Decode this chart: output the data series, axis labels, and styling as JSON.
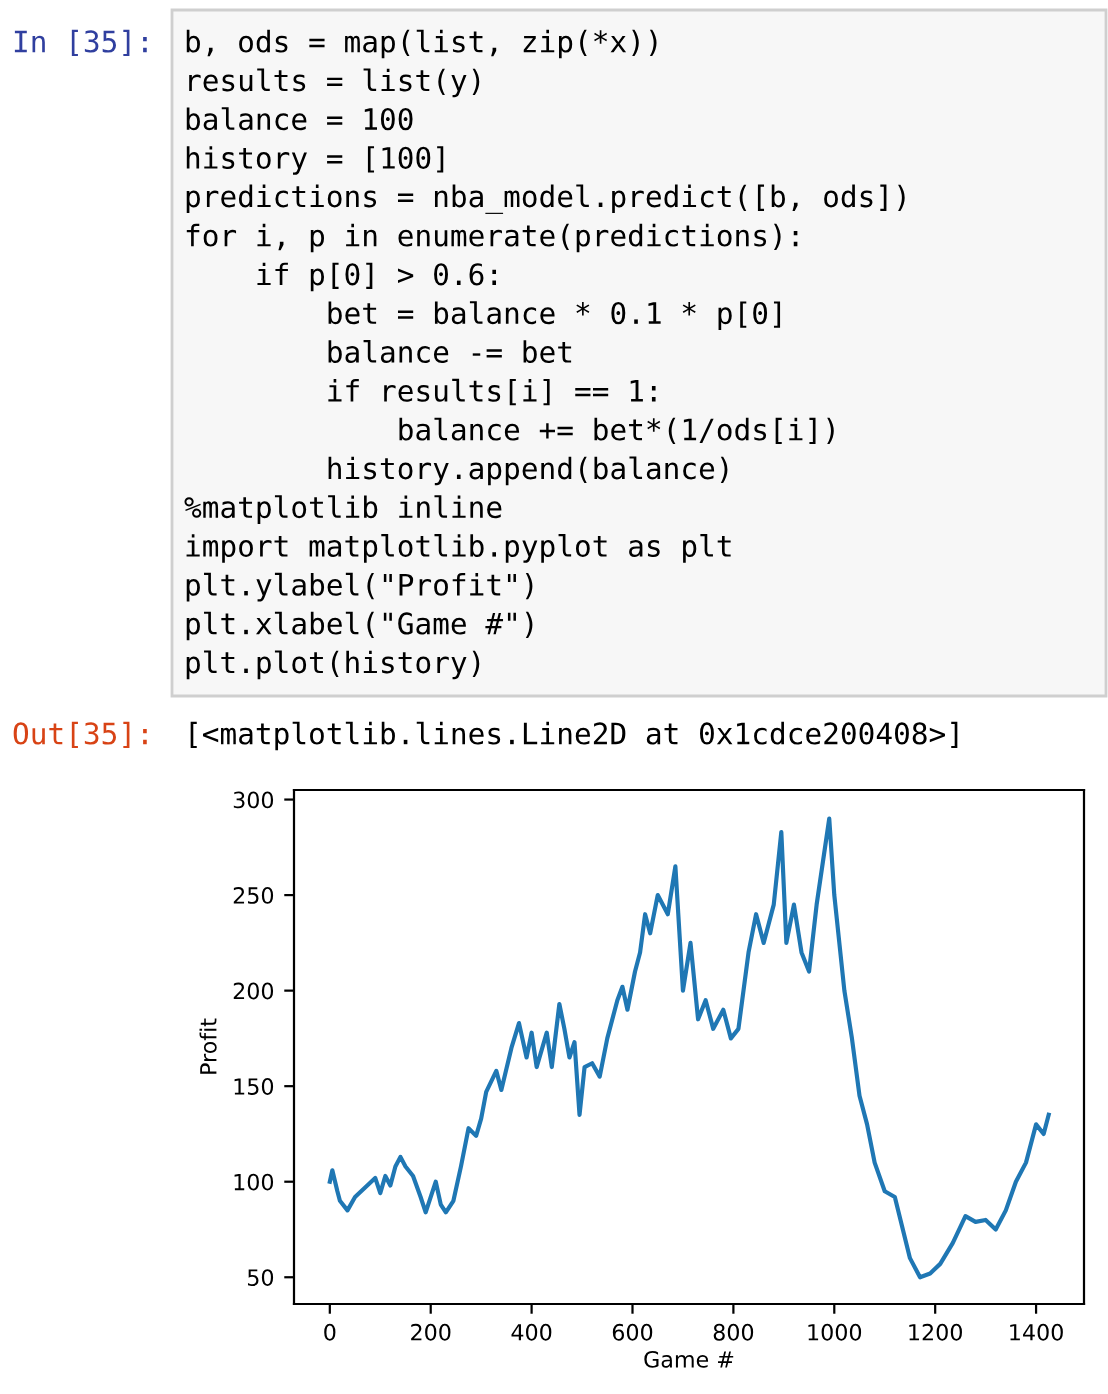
{
  "chart_data": {
    "type": "line",
    "xlabel": "Game #",
    "ylabel": "Profit",
    "annotations": [
      "In [35]:",
      "b, ods = map(list, zip(*x))",
      "results = list(y)",
      "balance = 100",
      "history = [100]",
      "predictions = nba_model.predict([b, ods])",
      "for i, p in enumerate(predictions):",
      "    if p[0] > 0.6:",
      "        bet = balance * 0.1 * p[0]",
      "        balance -= bet",
      "        if results[i] == 1:",
      "            balance += bet*(1/ods[i])",
      "        history.append(balance)",
      "%matplotlib inline",
      "import matplotlib.pyplot as plt",
      "plt.ylabel(\"Profit\")",
      "plt.xlabel(\"Game #\")",
      "plt.plot(history)",
      "Out[35]:",
      "[<matplotlib.lines.Line2D at 0x1cdce200408>]"
    ],
    "series": [
      {
        "color": "#1f77b4",
        "x": [
          0,
          5,
          15,
          20,
          35,
          50,
          70,
          90,
          100,
          110,
          120,
          130,
          140,
          150,
          165,
          180,
          190,
          210,
          220,
          230,
          245,
          260,
          275,
          290,
          300,
          310,
          330,
          340,
          360,
          375,
          390,
          400,
          410,
          430,
          440,
          455,
          465,
          475,
          485,
          495,
          505,
          520,
          535,
          550,
          570,
          580,
          590,
          605,
          615,
          625,
          635,
          650,
          670,
          685,
          700,
          715,
          730,
          745,
          760,
          780,
          795,
          810,
          830,
          845,
          860,
          880,
          895,
          905,
          920,
          935,
          950,
          965,
          990,
          1000,
          1020,
          1035,
          1050,
          1065,
          1080,
          1100,
          1120,
          1150,
          1170,
          1190,
          1210,
          1235,
          1260,
          1280,
          1300,
          1320,
          1340,
          1360,
          1380,
          1400,
          1415,
          1425
        ],
        "values": [
          100,
          106,
          95,
          90,
          85,
          92,
          97,
          102,
          94,
          103,
          98,
          108,
          113,
          108,
          103,
          92,
          84,
          100,
          88,
          84,
          90,
          108,
          128,
          124,
          133,
          147,
          158,
          148,
          170,
          183,
          165,
          178,
          160,
          178,
          160,
          193,
          180,
          165,
          173,
          135,
          160,
          162,
          155,
          175,
          195,
          202,
          190,
          210,
          220,
          240,
          230,
          250,
          240,
          265,
          200,
          225,
          185,
          195,
          180,
          190,
          175,
          180,
          220,
          240,
          225,
          245,
          283,
          225,
          245,
          220,
          210,
          245,
          290,
          250,
          200,
          175,
          145,
          130,
          110,
          95,
          92,
          60,
          50,
          52,
          57,
          68,
          82,
          79,
          80,
          75,
          85,
          100,
          110,
          130,
          125,
          135
        ]
      }
    ],
    "xlim": [
      -71,
      1495
    ],
    "ylim": [
      36,
      305
    ],
    "xticks": [
      0,
      200,
      400,
      600,
      800,
      1000,
      1200,
      1400
    ],
    "yticks": [
      50,
      100,
      150,
      200,
      250,
      300
    ],
    "grid": false,
    "legend": false,
    "marker": "none",
    "line_style": "solid"
  }
}
